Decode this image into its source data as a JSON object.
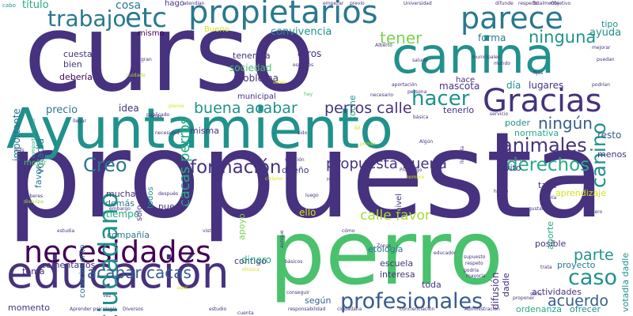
{
  "palette": {
    "purple": "#46327e",
    "dark_purple": "#440154",
    "indigo": "#3b528b",
    "blue": "#365c8d",
    "teal": "#2a788e",
    "cyan": "#21918c",
    "green_teal": "#25ab82",
    "green": "#4ac16d",
    "light_green": "#7ad151",
    "lime": "#a8db34",
    "yellow": "#d5e21a",
    "bright_yellow": "#fde725"
  },
  "words": [
    {
      "text": "propuesta",
      "color": "purple"
    },
    {
      "text": "curso",
      "color": "purple"
    },
    {
      "text": "perro",
      "color": "green"
    },
    {
      "text": "Ayuntamiento",
      "color": "cyan"
    },
    {
      "text": "canina",
      "color": "cyan"
    },
    {
      "text": "educación",
      "color": "purple"
    },
    {
      "text": "propietarios",
      "color": "teal"
    },
    {
      "text": "parece",
      "color": "teal"
    },
    {
      "text": "Gracias",
      "color": "purple"
    },
    {
      "text": "necesidades",
      "color": "dark_purple"
    },
    {
      "text": "ciudadano",
      "color": "cyan"
    },
    {
      "text": "etc",
      "color": "teal"
    },
    {
      "text": "trabajo",
      "color": "teal"
    },
    {
      "text": "profesionales",
      "color": "blue"
    },
    {
      "text": "caso",
      "color": "cyan"
    },
    {
      "text": "canino",
      "color": "cyan"
    },
    {
      "text": "hacer",
      "color": "cyan"
    },
    {
      "text": "animales",
      "color": "purple"
    },
    {
      "text": "derechos",
      "color": "green_teal"
    },
    {
      "text": "formación",
      "color": "purple"
    },
    {
      "text": "Creo",
      "color": "teal"
    },
    {
      "text": "acabar cacas",
      "color": "blue"
    },
    {
      "text": "buena acabar",
      "color": "cyan"
    },
    {
      "text": "perros calle",
      "color": "purple"
    },
    {
      "text": "propuesta buena",
      "color": "purple"
    },
    {
      "text": "ninguna",
      "color": "cyan"
    },
    {
      "text": "ningún",
      "color": "blue"
    },
    {
      "text": "tener",
      "color": "light_green"
    },
    {
      "text": "cacas perros",
      "color": "green_teal"
    },
    {
      "text": "acuerdo",
      "color": "blue"
    },
    {
      "text": "parte",
      "color": "cyan"
    },
    {
      "text": "calle favor",
      "color": "lime"
    },
    {
      "text": "cosa",
      "color": "teal"
    },
    {
      "text": "hago",
      "color": "purple"
    },
    {
      "text": "título",
      "color": "green_teal"
    },
    {
      "text": "convivencia",
      "color": "cyan"
    },
    {
      "text": "ayuda",
      "color": "cyan"
    },
    {
      "text": "tipo",
      "color": "cyan"
    },
    {
      "text": "mismo",
      "color": "dark_purple"
    },
    {
      "text": "Bueno",
      "color": "yellow"
    },
    {
      "text": "forma",
      "color": "teal"
    },
    {
      "text": "tenencia",
      "color": "purple"
    },
    {
      "text": "otros",
      "color": "purple"
    },
    {
      "text": "sociedad",
      "color": "green"
    },
    {
      "text": "problema",
      "color": "purple"
    },
    {
      "text": "municipal",
      "color": "purple"
    },
    {
      "text": "coche",
      "color": "cyan"
    },
    {
      "text": "mascota",
      "color": "purple"
    },
    {
      "text": "día",
      "color": "cyan"
    },
    {
      "text": "lugares",
      "color": "purple"
    },
    {
      "text": "tenerlo",
      "color": "purple"
    },
    {
      "text": "poder",
      "color": "cyan"
    },
    {
      "text": "normativa",
      "color": "green_teal"
    },
    {
      "text": "resto",
      "color": "blue"
    },
    {
      "text": "cuesta",
      "color": "purple"
    },
    {
      "text": "bien",
      "color": "purple"
    },
    {
      "text": "debería",
      "color": "dark_purple"
    },
    {
      "text": "importante",
      "color": "teal"
    },
    {
      "text": "votadla",
      "color": "teal"
    },
    {
      "text": "favor",
      "color": "teal"
    },
    {
      "text": "precio",
      "color": "teal"
    },
    {
      "text": "idea",
      "color": "purple"
    },
    {
      "text": "misma",
      "color": "purple"
    },
    {
      "text": "mejor",
      "color": "green"
    },
    {
      "text": "conocimiento",
      "color": "teal"
    },
    {
      "text": "mucha",
      "color": "purple"
    },
    {
      "text": "demás",
      "color": "teal"
    },
    {
      "text": "tiempo",
      "color": "green_teal"
    },
    {
      "text": "compañía",
      "color": "teal"
    },
    {
      "text": "comentarios",
      "color": "purple"
    },
    {
      "text": "puede",
      "color": "purple"
    },
    {
      "text": "apoyo",
      "color": "light_green"
    },
    {
      "text": "dueño",
      "color": "purple"
    },
    {
      "text": "ello",
      "color": "yellow"
    },
    {
      "text": "contigo",
      "color": "purple"
    },
    {
      "text": "dinero",
      "color": "green_teal"
    },
    {
      "text": "tema",
      "color": "purple"
    },
    {
      "text": "según",
      "color": "blue"
    },
    {
      "text": "momento",
      "color": "purple"
    },
    {
      "text": "escuela",
      "color": "purple"
    },
    {
      "text": "interesa",
      "color": "purple"
    },
    {
      "text": "toda",
      "color": "purple"
    },
    {
      "text": "etología",
      "color": "teal"
    },
    {
      "text": "dadle",
      "color": "purple"
    },
    {
      "text": "difusión",
      "color": "purple"
    },
    {
      "text": "aporte",
      "color": "green_teal"
    },
    {
      "text": "tasa",
      "color": "purple"
    },
    {
      "text": "invito",
      "color": "purple"
    },
    {
      "text": "menos",
      "color": "purple"
    },
    {
      "text": "aprendizaje",
      "color": "yellow"
    },
    {
      "text": "posible",
      "color": "purple"
    },
    {
      "text": "proyecto",
      "color": "teal"
    },
    {
      "text": "votadla dadle",
      "color": "cyan"
    },
    {
      "text": "actividades",
      "color": "purple"
    },
    {
      "text": "ordenanza",
      "color": "green_teal"
    },
    {
      "text": "ofrecer",
      "color": "cyan"
    },
    {
      "text": "todos",
      "color": "cyan"
    },
    {
      "text": "sólo",
      "color": "purple"
    },
    {
      "text": "cabo",
      "color": "cyan"
    },
    {
      "text": "atendían",
      "color": "purple"
    },
    {
      "text": "empezar",
      "color": "purple"
    },
    {
      "text": "previo",
      "color": "purple"
    },
    {
      "text": "Universidad",
      "color": "purple"
    },
    {
      "text": "difunde",
      "color": "purple"
    },
    {
      "text": "respecto",
      "color": "purple"
    },
    {
      "text": "Totalmente",
      "color": "purple"
    },
    {
      "text": "Objetivo",
      "color": "purple"
    },
    {
      "text": "hace",
      "color": "purple"
    },
    {
      "text": "llegar",
      "color": "purple"
    },
    {
      "text": "publicado",
      "color": "purple"
    },
    {
      "text": "comportamiento",
      "color": "green_teal"
    },
    {
      "text": "gran",
      "color": "purple"
    },
    {
      "text": "espacios",
      "color": "purple"
    },
    {
      "text": "municipales",
      "color": "purple"
    },
    {
      "text": "mundo",
      "color": "purple"
    },
    {
      "text": "fijas",
      "color": "purple"
    },
    {
      "text": "puedan",
      "color": "purple"
    },
    {
      "text": "podrían",
      "color": "purple"
    },
    {
      "text": "mejorar",
      "color": "purple"
    },
    {
      "text": "cuidado",
      "color": "lime"
    },
    {
      "text": "saludo",
      "color": "purple"
    },
    {
      "text": "Alberto",
      "color": "purple"
    },
    {
      "text": "persona",
      "color": "purple"
    },
    {
      "text": "aportación",
      "color": "purple"
    },
    {
      "text": "necesario",
      "color": "purple"
    },
    {
      "text": "básica",
      "color": "purple"
    },
    {
      "text": "servicio",
      "color": "purple"
    },
    {
      "text": "saber",
      "color": "yellow"
    },
    {
      "text": "hay",
      "color": "green"
    },
    {
      "text": "unas",
      "color": "purple"
    },
    {
      "text": "plenos",
      "color": "yellow"
    },
    {
      "text": "necesidad",
      "color": "purple"
    },
    {
      "text": "sido",
      "color": "purple"
    },
    {
      "text": "Bil",
      "color": "yellow"
    },
    {
      "text": "primer",
      "color": "yellow"
    },
    {
      "text": "Algún",
      "color": "purple"
    },
    {
      "text": "llevaría",
      "color": "purple"
    },
    {
      "text": "experiencia",
      "color": "purple"
    },
    {
      "text": "acceder",
      "color": "purple"
    },
    {
      "text": "solución",
      "color": "purple"
    },
    {
      "text": "civismo",
      "color": "yellow"
    },
    {
      "text": "Hola",
      "color": "purple"
    },
    {
      "text": "Propongo",
      "color": "purple"
    },
    {
      "text": "hombre",
      "color": "yellow"
    },
    {
      "text": "deberes",
      "color": "purple"
    },
    {
      "text": "disculpa",
      "color": "lime"
    },
    {
      "text": "embargo",
      "color": "purple"
    },
    {
      "text": "después",
      "color": "purple"
    },
    {
      "text": "luego",
      "color": "purple"
    },
    {
      "text": "hecho",
      "color": "purple"
    },
    {
      "text": "haría",
      "color": "purple"
    },
    {
      "text": "gustaría",
      "color": "purple"
    },
    {
      "text": "número",
      "color": "purple"
    },
    {
      "text": "cuenta",
      "color": "purple"
    },
    {
      "text": "conseguir",
      "color": "purple"
    },
    {
      "text": "responsabilidad",
      "color": "purple"
    },
    {
      "text": "ciudadana",
      "color": "purple"
    },
    {
      "text": "concienciación",
      "color": "purple"
    },
    {
      "text": "Administración",
      "color": "purple"
    },
    {
      "text": "Aprender psicología",
      "color": "purple"
    },
    {
      "text": "Diversos",
      "color": "purple"
    },
    {
      "text": "estudio",
      "color": "purple"
    },
    {
      "text": "estudia",
      "color": "purple"
    },
    {
      "text": "paso",
      "color": "purple"
    },
    {
      "text": "visto",
      "color": "purple"
    },
    {
      "text": "cómo",
      "color": "purple"
    },
    {
      "text": "Zonas",
      "color": "purple"
    },
    {
      "text": "básicos",
      "color": "purple"
    },
    {
      "text": "educador",
      "color": "purple"
    },
    {
      "text": "supuesto",
      "color": "purple"
    },
    {
      "text": "respeto",
      "color": "purple"
    },
    {
      "text": "podría",
      "color": "purple"
    },
    {
      "text": "mayoría",
      "color": "purple"
    },
    {
      "text": "trata",
      "color": "purple"
    },
    {
      "text": "proponer",
      "color": "purple"
    },
    {
      "text": "serio",
      "color": "purple"
    },
    {
      "text": "vez",
      "color": "purple"
    },
    {
      "text": "aquí",
      "color": "yellow"
    },
    {
      "text": "más",
      "color": "purple"
    },
    {
      "text": "mayor",
      "color": "purple"
    },
    {
      "text": "aunque",
      "color": "purple"
    },
    {
      "text": "ofrezca",
      "color": "yellow"
    },
    {
      "text": "nivel",
      "color": "purple"
    }
  ]
}
